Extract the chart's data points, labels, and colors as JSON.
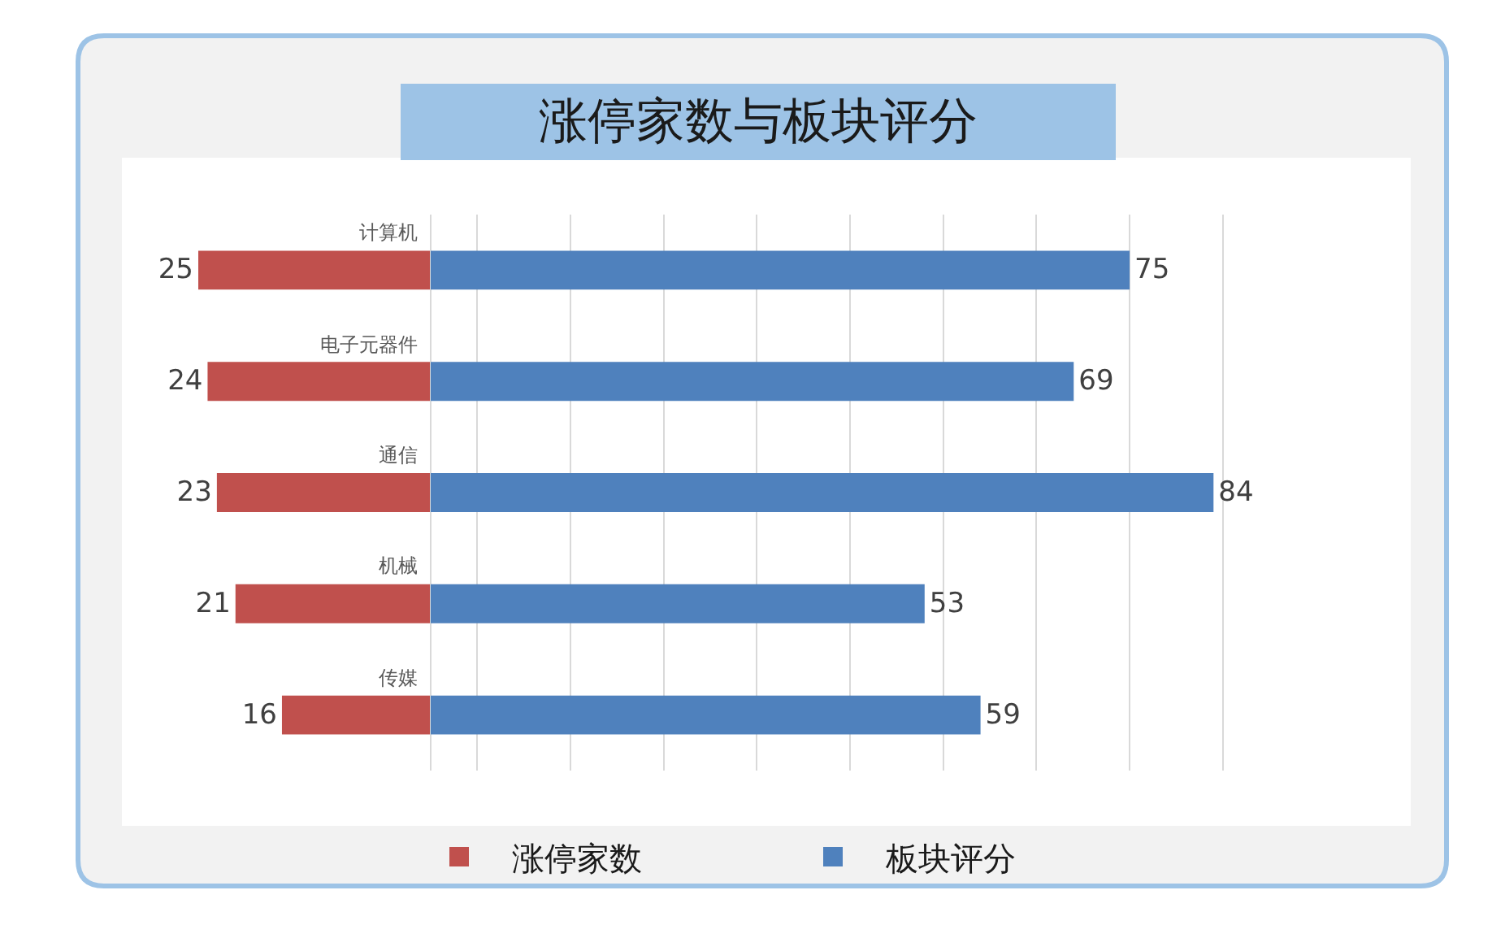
{
  "chart_data": [
    {
      "type": "bar",
      "orientation": "horizontal",
      "categories": [
        "计算机",
        "电子元器件",
        "通信",
        "机械",
        "传媒"
      ],
      "series": [
        {
          "name": "涨停家数",
          "color": "#c0504d",
          "values": [
            25,
            24,
            23,
            21,
            16
          ]
        }
      ],
      "xlim": [
        25,
        0
      ],
      "legend": "bottom",
      "tick_labels": "y",
      "data_labels": true
    },
    {
      "type": "bar",
      "title": "涨停家数与板块评分",
      "orientation": "horizontal",
      "categories": [
        null,
        null,
        null,
        null,
        null
      ],
      "series": [
        {
          "name": "板块评分",
          "color": "#4f81bd",
          "values": [
            75,
            69,
            84,
            53,
            59
          ]
        }
      ],
      "xticks": [
        {
          "value": 5,
          "label": null
        },
        {
          "value": 15,
          "label": null
        },
        {
          "value": 25,
          "label": null
        },
        {
          "value": 35,
          "label": null
        },
        {
          "value": 45,
          "label": null
        },
        {
          "value": 55,
          "label": null
        },
        {
          "value": 65,
          "label": null
        },
        {
          "value": 75,
          "label": null
        },
        {
          "value": 85,
          "label": null
        }
      ],
      "grid": "x",
      "legend": "bottom",
      "tick_labels": false,
      "data_labels": true
    }
  ]
}
